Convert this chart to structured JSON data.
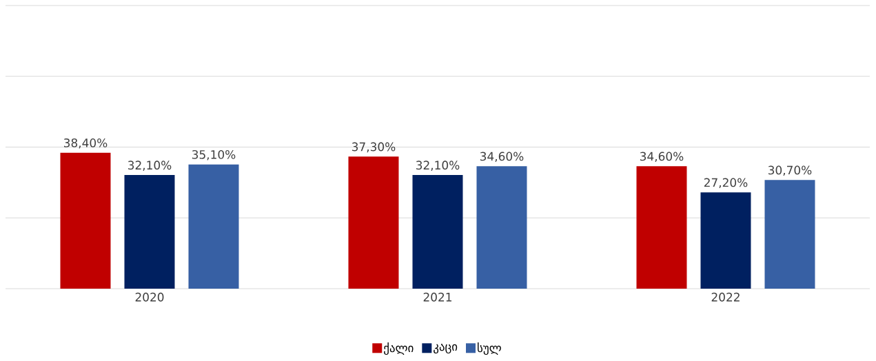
{
  "chart_data": {
    "type": "bar",
    "categories": [
      "2020",
      "2021",
      "2022"
    ],
    "series": [
      {
        "name": "ქალი",
        "color": "#c00000",
        "values": [
          38.4,
          37.3,
          34.6
        ],
        "value_labels": [
          "38,40%",
          "37,30%",
          "34,60%"
        ]
      },
      {
        "name": "კაცი",
        "color": "#002060",
        "values": [
          32.1,
          32.1,
          27.2
        ],
        "value_labels": [
          "32,10%",
          "32,10%",
          "27,20%"
        ]
      },
      {
        "name": "სულ",
        "color": "#3760a4",
        "values": [
          35.1,
          34.6,
          30.7
        ],
        "value_labels": [
          "35,10%",
          "34,60%",
          "30,70%"
        ]
      }
    ],
    "ylim": [
      0,
      80
    ],
    "yticks": [
      {
        "value": 0,
        "label": null
      },
      {
        "value": 20,
        "label": null
      },
      {
        "value": 40,
        "label": null
      },
      {
        "value": 60,
        "label": null
      },
      {
        "value": 80,
        "label": null
      }
    ],
    "grid": "y",
    "tick_labels": "x",
    "legend": "bottom"
  }
}
